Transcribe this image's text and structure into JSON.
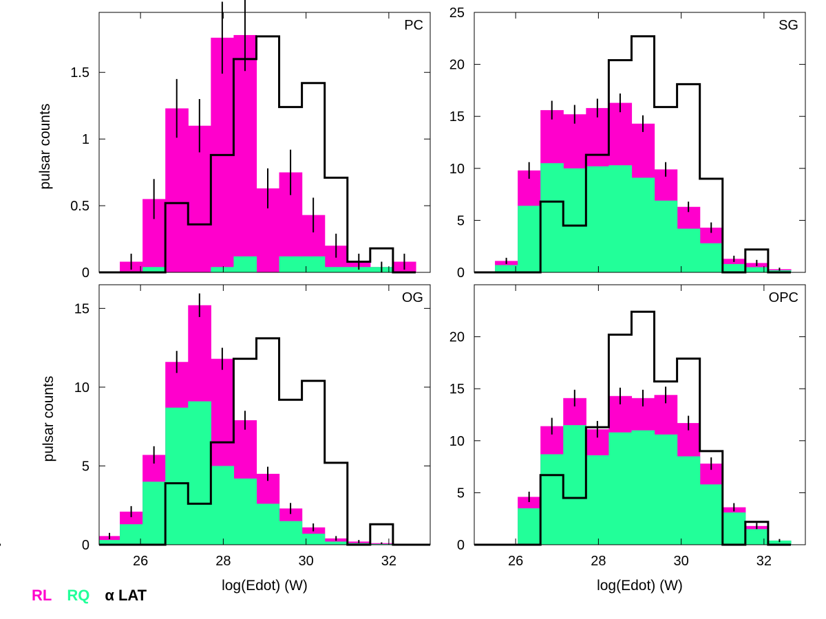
{
  "colors": {
    "rl": "#ff00cc",
    "rq": "#22ff99",
    "lat": "#000000",
    "axis": "#000000"
  },
  "legend": {
    "rl": "RL",
    "rq": "RQ",
    "lat": "α LAT"
  },
  "chart_data": [
    {
      "type": "bar",
      "title": "PC",
      "xlabel": "",
      "ylabel": "pulsar counts",
      "xlim": [
        25,
        33
      ],
      "ylim": [
        0,
        1.95
      ],
      "xticks": [],
      "yticks": [
        0,
        0.5,
        1,
        1.5
      ],
      "ytick_labels": [
        "0",
        "0.5",
        "1",
        "1.5"
      ],
      "bin_edges": [
        25.5,
        26.05,
        26.6,
        27.15,
        27.7,
        28.25,
        28.8,
        29.35,
        29.9,
        30.45,
        31.0,
        31.55,
        32.1,
        32.65
      ],
      "series": [
        {
          "name": "RQ",
          "values": [
            0,
            0.04,
            0,
            0,
            0.04,
            0.12,
            0,
            0.12,
            0.12,
            0.04,
            0.04,
            0.04,
            0,
            0
          ]
        },
        {
          "name": "RL total",
          "values": [
            0.08,
            0.55,
            1.23,
            1.1,
            1.76,
            1.78,
            0.63,
            0.75,
            0.43,
            0.2,
            0.08,
            0.04,
            0.08,
            0
          ]
        },
        {
          "name": "α LAT",
          "values": [
            0,
            0,
            0.52,
            0.36,
            0.88,
            1.6,
            1.77,
            1.24,
            1.42,
            0.71,
            0.08,
            0.18,
            0,
            0
          ]
        }
      ],
      "errors": [
        0.06,
        0.15,
        0.22,
        0.2,
        0.27,
        0.27,
        0.15,
        0.17,
        0.13,
        0.09,
        0.06,
        0.04,
        0.06,
        0
      ]
    },
    {
      "type": "bar",
      "title": "SG",
      "xlabel": "",
      "ylabel": "",
      "xlim": [
        25,
        33
      ],
      "ylim": [
        0,
        25
      ],
      "xticks": [],
      "yticks": [
        0,
        5,
        10,
        15,
        20,
        25
      ],
      "ytick_labels": [
        "0",
        "5",
        "10",
        "15",
        "20",
        "25"
      ],
      "bin_edges": [
        25.5,
        26.05,
        26.6,
        27.15,
        27.7,
        28.25,
        28.8,
        29.35,
        29.9,
        30.45,
        31.0,
        31.55,
        32.1,
        32.65
      ],
      "series": [
        {
          "name": "RQ",
          "values": [
            0.7,
            6.4,
            10.5,
            10.0,
            10.2,
            10.3,
            9.1,
            6.9,
            4.2,
            2.8,
            0.8,
            0.5,
            0.2,
            0
          ]
        },
        {
          "name": "RL total",
          "values": [
            1.1,
            9.8,
            15.6,
            15.2,
            15.8,
            16.3,
            14.3,
            9.9,
            6.3,
            4.3,
            1.3,
            0.9,
            0.3,
            0
          ]
        },
        {
          "name": "α LAT",
          "values": [
            0,
            0,
            6.8,
            4.5,
            11.3,
            20.4,
            22.7,
            15.9,
            18.1,
            9.0,
            0,
            2.2,
            0,
            0
          ]
        }
      ],
      "errors": [
        0.3,
        0.8,
        0.9,
        0.9,
        0.9,
        0.9,
        0.8,
        0.7,
        0.5,
        0.5,
        0.3,
        0.3,
        0.15,
        0
      ]
    },
    {
      "type": "bar",
      "title": "OG",
      "xlabel": "log(Edot) (W)",
      "ylabel": "pulsar counts",
      "xlim": [
        25,
        33
      ],
      "ylim": [
        0,
        16.5
      ],
      "xticks": [
        26,
        28,
        30,
        32
      ],
      "yticks": [
        0,
        5,
        10,
        15
      ],
      "ytick_labels": [
        "0",
        "5",
        "10",
        "15"
      ],
      "bin_edges": [
        25.0,
        25.5,
        26.05,
        26.6,
        27.15,
        27.7,
        28.25,
        28.8,
        29.35,
        29.9,
        30.45,
        31.0,
        31.55,
        32.1,
        32.65
      ],
      "series": [
        {
          "name": "RQ",
          "values": [
            0.3,
            1.3,
            4.0,
            8.7,
            9.1,
            5.0,
            4.2,
            2.6,
            1.5,
            0.7,
            0.2,
            0.1,
            0.05,
            0
          ]
        },
        {
          "name": "RL total",
          "values": [
            0.55,
            2.1,
            5.7,
            11.6,
            15.2,
            11.8,
            7.9,
            4.5,
            2.3,
            1.1,
            0.4,
            0.2,
            0.1,
            0
          ]
        },
        {
          "name": "α LAT",
          "values": [
            0,
            0,
            0,
            3.9,
            2.6,
            6.5,
            11.8,
            13.1,
            9.2,
            10.4,
            5.2,
            0,
            1.3,
            0
          ]
        }
      ],
      "errors": [
        0.2,
        0.35,
        0.55,
        0.7,
        0.75,
        0.7,
        0.6,
        0.45,
        0.35,
        0.25,
        0.15,
        0.1,
        0.05,
        0
      ]
    },
    {
      "type": "bar",
      "title": "OPC",
      "xlabel": "log(Edot) (W)",
      "ylabel": "",
      "xlim": [
        25,
        33
      ],
      "ylim": [
        0,
        25
      ],
      "xticks": [
        26,
        28,
        30,
        32
      ],
      "yticks": [
        0,
        5,
        10,
        15,
        20
      ],
      "ytick_labels": [
        "0",
        "5",
        "10",
        "15",
        "20"
      ],
      "bin_edges": [
        25.5,
        26.05,
        26.6,
        27.15,
        27.7,
        28.25,
        28.8,
        29.35,
        29.9,
        30.45,
        31.0,
        31.55,
        32.1,
        32.65
      ],
      "series": [
        {
          "name": "RQ",
          "values": [
            0,
            3.5,
            8.7,
            11.5,
            8.6,
            10.8,
            11.0,
            10.6,
            8.5,
            5.8,
            3.1,
            1.5,
            0.4,
            0
          ]
        },
        {
          "name": "RL total",
          "values": [
            0,
            4.6,
            11.4,
            14.1,
            11.1,
            14.3,
            14.1,
            14.4,
            11.7,
            7.8,
            3.6,
            1.8,
            0.4,
            0
          ]
        },
        {
          "name": "α LAT",
          "values": [
            0,
            0,
            6.7,
            4.5,
            11.3,
            20.2,
            22.4,
            15.7,
            17.9,
            9.0,
            0,
            2.2,
            0,
            0
          ]
        }
      ],
      "errors": [
        0,
        0.5,
        0.8,
        0.8,
        0.8,
        0.8,
        0.8,
        0.8,
        0.7,
        0.6,
        0.4,
        0.3,
        0.15,
        0.1
      ]
    }
  ]
}
